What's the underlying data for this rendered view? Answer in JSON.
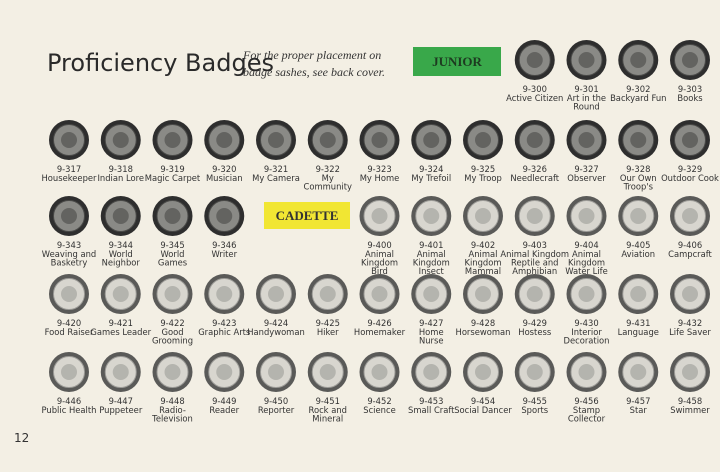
{
  "header": {
    "title": "Proficiency Badges",
    "note": [
      "For the proper placement on",
      "badge sashes, see back cover."
    ]
  },
  "page_number": "12",
  "junior": {
    "label": "JUNIOR",
    "badges": [
      {
        "number": "9-300",
        "name": [
          "Active Citizen"
        ]
      },
      {
        "number": "9-301",
        "name": [
          "Art in the",
          "Round"
        ]
      },
      {
        "number": "9-302",
        "name": [
          "Backyard Fun"
        ]
      },
      {
        "number": "9-303",
        "name": [
          "Books"
        ]
      },
      {
        "number": "9-317",
        "name": [
          "Housekeeper"
        ]
      },
      {
        "number": "9-318",
        "name": [
          "Indian Lore"
        ]
      },
      {
        "number": "9-319",
        "name": [
          "Magic Carpet"
        ]
      },
      {
        "number": "9-320",
        "name": [
          "Musician"
        ]
      },
      {
        "number": "9-321",
        "name": [
          "My Camera"
        ]
      },
      {
        "number": "9-322",
        "name": [
          "My",
          "Community"
        ]
      },
      {
        "number": "9-323",
        "name": [
          "My Home"
        ]
      },
      {
        "number": "9-324",
        "name": [
          "My Trefoil"
        ]
      },
      {
        "number": "9-325",
        "name": [
          "My Troop"
        ]
      },
      {
        "number": "9-326",
        "name": [
          "Needlecraft"
        ]
      },
      {
        "number": "9-327",
        "name": [
          "Observer"
        ]
      },
      {
        "number": "9-328",
        "name": [
          "Our Own",
          "Troop's"
        ]
      },
      {
        "number": "9-329",
        "name": [
          "Outdoor Cook"
        ]
      },
      {
        "number": "9-343",
        "name": [
          "Weaving and",
          "Basketry"
        ]
      },
      {
        "number": "9-344",
        "name": [
          "World",
          "Neighbor"
        ]
      },
      {
        "number": "9-345",
        "name": [
          "World",
          "Games"
        ]
      },
      {
        "number": "9-346",
        "name": [
          "Writer"
        ]
      }
    ]
  },
  "cadette": {
    "label": "CADETTE",
    "badges": [
      {
        "number": "9-400",
        "name": [
          "Animal",
          "Kingdom",
          "Bird"
        ]
      },
      {
        "number": "9-401",
        "name": [
          "Animal",
          "Kingdom",
          "Insect"
        ]
      },
      {
        "number": "9-402",
        "name": [
          "Animal",
          "Kingdom",
          "Mammal"
        ]
      },
      {
        "number": "9-403",
        "name": [
          "Animal Kingdom",
          "Reptile and",
          "Amphibian"
        ]
      },
      {
        "number": "9-404",
        "name": [
          "Animal",
          "Kingdom",
          "Water Life"
        ]
      },
      {
        "number": "9-405",
        "name": [
          "Aviation"
        ]
      },
      {
        "number": "9-406",
        "name": [
          "Campcraft"
        ]
      },
      {
        "number": "9-420",
        "name": [
          "Food Raiser"
        ]
      },
      {
        "number": "9-421",
        "name": [
          "Games Leader"
        ]
      },
      {
        "number": "9-422",
        "name": [
          "Good",
          "Grooming"
        ]
      },
      {
        "number": "9-423",
        "name": [
          "Graphic Arts"
        ]
      },
      {
        "number": "9-424",
        "name": [
          "Handywoman"
        ]
      },
      {
        "number": "9-425",
        "name": [
          "Hiker"
        ]
      },
      {
        "number": "9-426",
        "name": [
          "Homemaker"
        ]
      },
      {
        "number": "9-427",
        "name": [
          "Home",
          "Nurse"
        ]
      },
      {
        "number": "9-428",
        "name": [
          "Horsewoman"
        ]
      },
      {
        "number": "9-429",
        "name": [
          "Hostess"
        ]
      },
      {
        "number": "9-430",
        "name": [
          "Interior",
          "Decoration"
        ]
      },
      {
        "number": "9-431",
        "name": [
          "Language"
        ]
      },
      {
        "number": "9-432",
        "name": [
          "Life Saver"
        ]
      },
      {
        "number": "9-446",
        "name": [
          "Public Health"
        ]
      },
      {
        "number": "9-447",
        "name": [
          "Puppeteer"
        ]
      },
      {
        "number": "9-448",
        "name": [
          "Radio-",
          "Television"
        ]
      },
      {
        "number": "9-449",
        "name": [
          "Reader"
        ]
      },
      {
        "number": "9-450",
        "name": [
          "Reporter"
        ]
      },
      {
        "number": "9-451",
        "name": [
          "Rock and",
          "Mineral"
        ]
      },
      {
        "number": "9-452",
        "name": [
          "Science"
        ]
      },
      {
        "number": "9-453",
        "name": [
          "Small Craft"
        ]
      },
      {
        "number": "9-454",
        "name": [
          "Social Dancer"
        ]
      },
      {
        "number": "9-455",
        "name": [
          "Sports"
        ]
      },
      {
        "number": "9-456",
        "name": [
          "Stamp",
          "Collector"
        ]
      },
      {
        "number": "9-457",
        "name": [
          "Star"
        ]
      },
      {
        "number": "9-458",
        "name": [
          "Swimmer"
        ]
      }
    ]
  }
}
